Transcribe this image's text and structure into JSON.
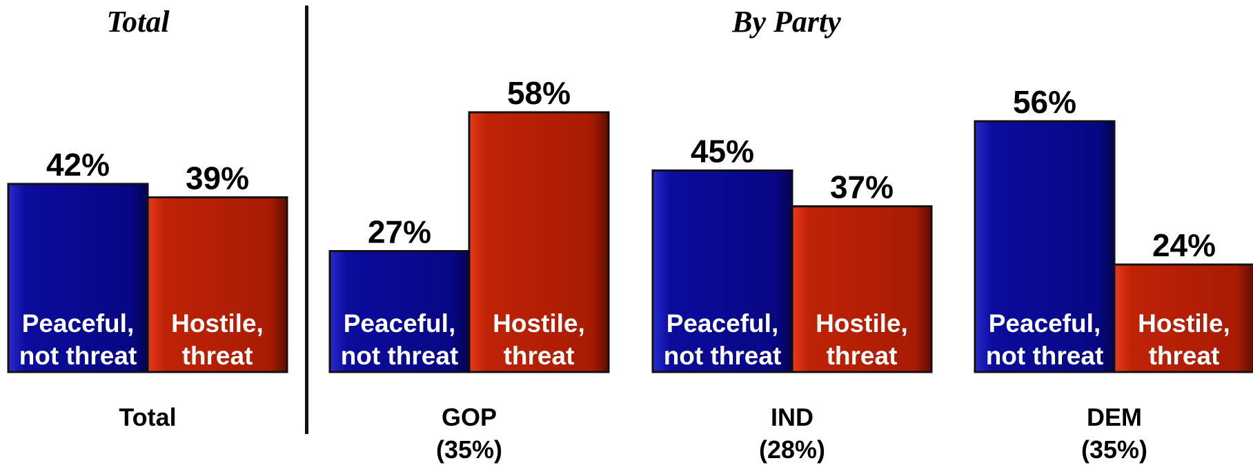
{
  "panel_titles": {
    "total": "Total",
    "by_party": "By Party"
  },
  "chart_data": {
    "type": "bar",
    "unit": "%",
    "series": [
      {
        "name": "Peaceful, not threat",
        "label_lines": [
          "Peaceful,",
          "not threat"
        ],
        "color": "#0a0a8c"
      },
      {
        "name": "Hostile, threat",
        "label_lines": [
          "Hostile,",
          "threat"
        ],
        "color": "#b01c04"
      }
    ],
    "groups": [
      {
        "category": "Total",
        "share": "",
        "values": [
          42,
          39
        ]
      },
      {
        "category": "GOP",
        "share": "(35%)",
        "values": [
          27,
          58
        ]
      },
      {
        "category": "IND",
        "share": "(28%)",
        "values": [
          45,
          37
        ]
      },
      {
        "category": "DEM",
        "share": "(35%)",
        "values": [
          56,
          24
        ]
      }
    ]
  }
}
